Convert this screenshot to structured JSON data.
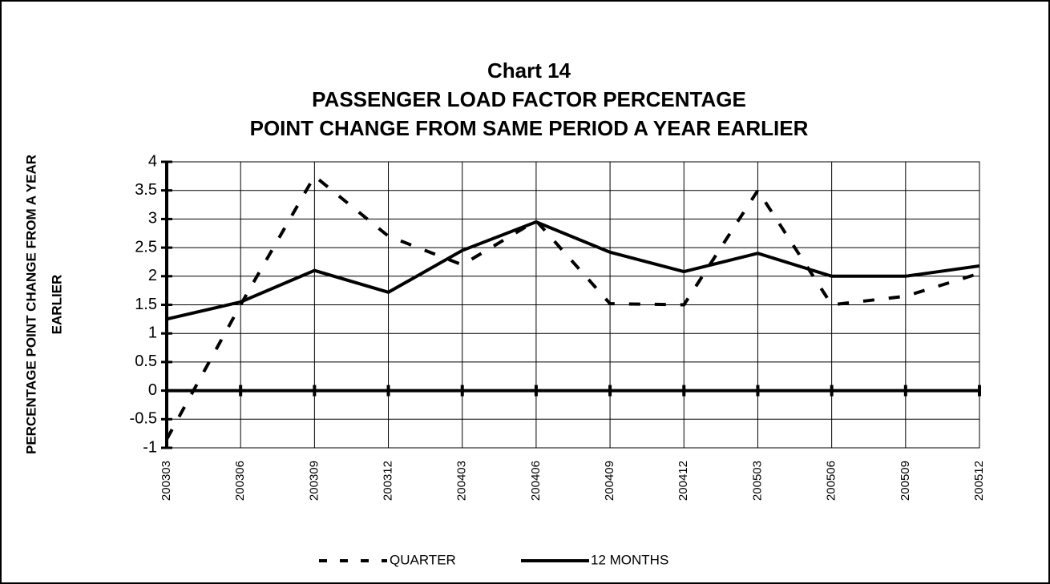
{
  "chart_data": {
    "type": "line",
    "title_lines": [
      "Chart 14",
      "PASSENGER LOAD FACTOR PERCENTAGE",
      "POINT CHANGE FROM SAME PERIOD A YEAR EARLIER"
    ],
    "y_label_lines": [
      "PERCENTAGE POINT CHANGE FROM A YEAR",
      "EARLIER"
    ],
    "categories": [
      "200303",
      "200306",
      "200309",
      "200312",
      "200403",
      "200406",
      "200409",
      "200412",
      "200503",
      "200506",
      "200509",
      "200512"
    ],
    "series": [
      {
        "name": "QUARTER",
        "color": "#000000",
        "line_style": "dashed",
        "values": [
          -0.85,
          1.5,
          3.75,
          2.7,
          2.2,
          2.97,
          1.52,
          1.5,
          3.5,
          1.5,
          1.65,
          2.05
        ]
      },
      {
        "name": "12 MONTHS",
        "color": "#000000",
        "line_style": "solid",
        "values": [
          1.25,
          1.55,
          2.1,
          1.72,
          2.45,
          2.95,
          2.42,
          2.08,
          2.4,
          2.0,
          2.0,
          2.18
        ]
      }
    ],
    "ylim": [
      -1,
      4
    ],
    "yticks": [
      -1,
      -0.5,
      0,
      0.5,
      1,
      1.5,
      2,
      2.5,
      3,
      3.5,
      4
    ],
    "grid": true,
    "legend": "bottom"
  }
}
